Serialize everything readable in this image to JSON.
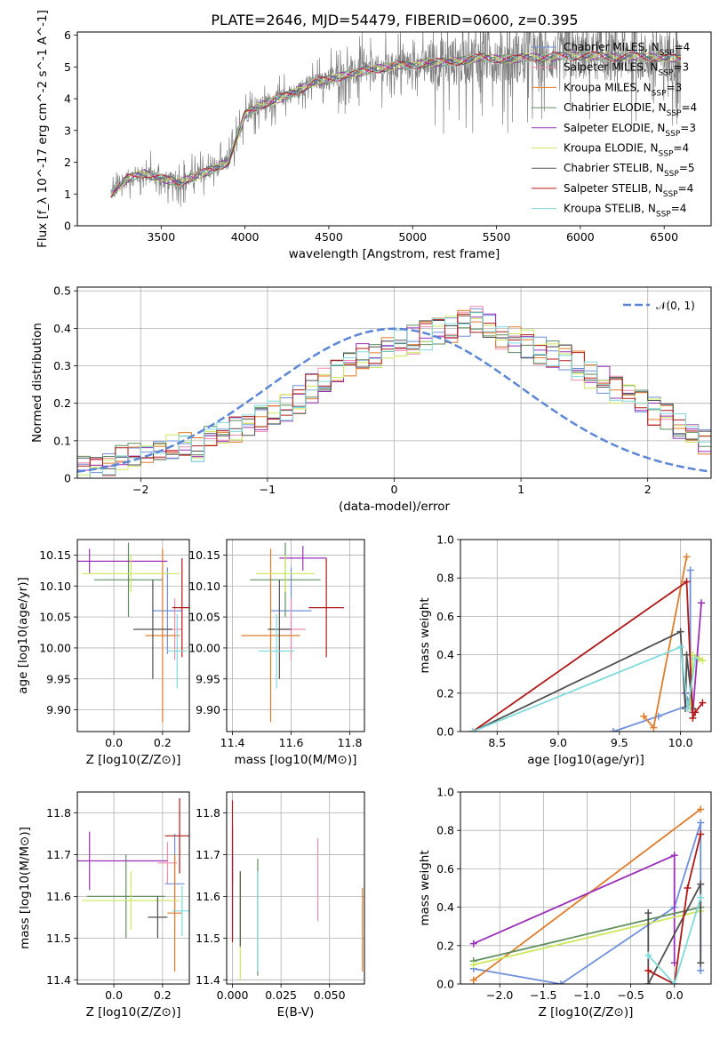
{
  "chart_data": [
    {
      "id": "spectrum",
      "type": "line",
      "title": "PLATE=2646, MJD=54479, FIBERID=0600, z=0.395",
      "xlabel": "wavelength [Angstrom, rest frame]",
      "ylabel": "Flux [f_λ 10^-17 erg cm^-2 s^-1 A^-1]",
      "xlim": [
        3000,
        6780
      ],
      "ylim": [
        0,
        6.1
      ],
      "xticks": [
        3500,
        4000,
        4500,
        5000,
        5500,
        6000,
        6500
      ],
      "yticks": [
        0,
        1,
        2,
        3,
        4,
        5,
        6
      ],
      "grid": false,
      "legend_position": "top-right",
      "legend": [
        {
          "prefix": "Chabrier MILES, N",
          "sub": "SSP",
          "suffix": "=4",
          "color": "#6d8fdc"
        },
        {
          "prefix": "Salpeter MILES, N",
          "sub": "SSP",
          "suffix": "=3",
          "color": "#f08cb0"
        },
        {
          "prefix": "Kroupa MILES, N",
          "sub": "SSP",
          "suffix": "=3",
          "color": "#e07b2a"
        },
        {
          "prefix": "Chabrier ELODIE, N",
          "sub": "SSP",
          "suffix": "=4",
          "color": "#5f8f5f"
        },
        {
          "prefix": "Salpeter ELODIE, N",
          "sub": "SSP",
          "suffix": "=3",
          "color": "#9b30b8"
        },
        {
          "prefix": "Kroupa ELODIE, N",
          "sub": "SSP",
          "suffix": "=4",
          "color": "#cce85a"
        },
        {
          "prefix": "Chabrier STELIB, N",
          "sub": "SSP",
          "suffix": "=5",
          "color": "#505050"
        },
        {
          "prefix": "Salpeter STELIB, N",
          "sub": "SSP",
          "suffix": "=4",
          "color": "#b01a1a"
        },
        {
          "prefix": "Kroupa STELIB, N",
          "sub": "SSP",
          "suffix": "=4",
          "color": "#7fdada"
        }
      ],
      "data_color": "#808080",
      "model_wavelength": [
        3200,
        3300,
        3400,
        3500,
        3600,
        3700,
        3800,
        3900,
        4000,
        4100,
        4200,
        4300,
        4400,
        4500,
        4600,
        4700,
        4800,
        4900,
        5000,
        5100,
        5200,
        5300,
        5400,
        5500,
        5600,
        5700,
        5800,
        5900,
        6000,
        6100,
        6200,
        6300,
        6400,
        6500,
        6600
      ],
      "model_flux": [
        1.0,
        1.5,
        1.65,
        1.5,
        1.35,
        1.55,
        1.75,
        2.0,
        3.5,
        3.8,
        4.0,
        4.2,
        4.5,
        4.6,
        4.75,
        4.85,
        4.95,
        5.05,
        5.05,
        5.15,
        5.15,
        5.2,
        5.3,
        5.25,
        5.25,
        5.3,
        5.3,
        5.35,
        5.35,
        5.35,
        5.3,
        5.35,
        5.3,
        5.3,
        5.25
      ]
    },
    {
      "id": "residuals",
      "type": "histogram",
      "xlabel": "(data-model)/error",
      "ylabel": "Normed distribution",
      "xlim": [
        -2.5,
        2.5
      ],
      "ylim": [
        0,
        0.51
      ],
      "xticks": [
        -2,
        -1,
        0,
        1,
        2
      ],
      "yticks": [
        0.0,
        0.1,
        0.2,
        0.3,
        0.4,
        0.5
      ],
      "grid": true,
      "legend_position": "top-right",
      "legend": "𝒩(0, 1)",
      "bin_width": 0.1,
      "bin_start": -2.5,
      "series": [
        {
          "name": "Chabrier MILES",
          "color": "#6d8fdc",
          "values": [
            0.02,
            0.03,
            0.04,
            0.05,
            0.06,
            0.06,
            0.07,
            0.08,
            0.09,
            0.08,
            0.11,
            0.12,
            0.13,
            0.15,
            0.16,
            0.18,
            0.19,
            0.21,
            0.24,
            0.27,
            0.29,
            0.31,
            0.32,
            0.33,
            0.35,
            0.36,
            0.37,
            0.38,
            0.39,
            0.4,
            0.41,
            0.42,
            0.4,
            0.38,
            0.37,
            0.36,
            0.34,
            0.33,
            0.32,
            0.3,
            0.28,
            0.26,
            0.24,
            0.22,
            0.2,
            0.18,
            0.16,
            0.14,
            0.12,
            0.1
          ]
        }
      ]
    },
    {
      "id": "age_vs_Z",
      "type": "errorbar",
      "xlabel": "Z [log10(Z/Z⊙)]",
      "ylabel": "age [log10(age/yr)]",
      "xlim": [
        -0.15,
        0.31
      ],
      "ylim": [
        9.865,
        10.175
      ],
      "xticks": [
        "0.0",
        "0.2"
      ],
      "yticks": [
        "9.90",
        "9.95",
        "10.00",
        "10.05",
        "10.10",
        "10.15"
      ],
      "grid": true,
      "points": [
        {
          "name": "Chabrier MILES",
          "color": "#6d8fdc",
          "x": 0.22,
          "y": 10.06,
          "xerr": 0.06,
          "yerr": 0.07
        },
        {
          "name": "Salpeter MILES",
          "color": "#f08cb0",
          "x": 0.25,
          "y": 10.03,
          "xerr": 0.03,
          "yerr": 0.05
        },
        {
          "name": "Kroupa MILES",
          "color": "#e07b2a",
          "x": 0.2,
          "y": 10.02,
          "xerr": 0.07,
          "yerr": 0.14
        },
        {
          "name": "Chabrier ELODIE",
          "color": "#5f8f5f",
          "x": 0.06,
          "y": 10.11,
          "xerr": 0.14,
          "yerr": 0.06
        },
        {
          "name": "Salpeter ELODIE",
          "color": "#9b30b8",
          "x": -0.1,
          "y": 10.14,
          "xerr": 0.32,
          "yerr": 0.02
        },
        {
          "name": "Kroupa ELODIE",
          "color": "#cce85a",
          "x": 0.07,
          "y": 10.12,
          "xerr": 0.2,
          "yerr": 0.03
        },
        {
          "name": "Chabrier STELIB",
          "color": "#505050",
          "x": 0.16,
          "y": 10.03,
          "xerr": 0.08,
          "yerr": 0.08
        },
        {
          "name": "Salpeter STELIB",
          "color": "#b01a1a",
          "x": 0.28,
          "y": 10.065,
          "xerr": 0.04,
          "yerr": 0.08
        },
        {
          "name": "Kroupa STELIB",
          "color": "#7fdada",
          "x": 0.26,
          "y": 9.995,
          "xerr": 0.04,
          "yerr": 0.06
        }
      ]
    },
    {
      "id": "age_vs_mass",
      "type": "errorbar",
      "xlabel": "mass [log10(M/M⊙)]",
      "ylabel": "",
      "xlim": [
        11.38,
        11.85
      ],
      "ylim": [
        9.865,
        10.175
      ],
      "xticks": [
        "11.4",
        "11.6",
        "11.8"
      ],
      "yticks": [
        "9.90",
        "9.95",
        "10.00",
        "10.05",
        "10.10",
        "10.15"
      ],
      "grid": true,
      "points": [
        {
          "name": "Chabrier MILES",
          "color": "#6d8fdc",
          "x": 11.6,
          "y": 10.06,
          "xerr": 0.07,
          "yerr": 0.07
        },
        {
          "name": "Salpeter MILES",
          "color": "#f08cb0",
          "x": 11.6,
          "y": 10.03,
          "xerr": 0.05,
          "yerr": 0.05
        },
        {
          "name": "Kroupa MILES",
          "color": "#e07b2a",
          "x": 11.53,
          "y": 10.02,
          "xerr": 0.1,
          "yerr": 0.14
        },
        {
          "name": "Chabrier ELODIE",
          "color": "#5f8f5f",
          "x": 11.58,
          "y": 10.11,
          "xerr": 0.12,
          "yerr": 0.06
        },
        {
          "name": "Salpeter ELODIE",
          "color": "#9b30b8",
          "x": 11.64,
          "y": 10.145,
          "xerr": 0.08,
          "yerr": 0.02
        },
        {
          "name": "Kroupa ELODIE",
          "color": "#cce85a",
          "x": 11.58,
          "y": 10.12,
          "xerr": 0.1,
          "yerr": 0.03
        },
        {
          "name": "Chabrier STELIB",
          "color": "#505050",
          "x": 11.56,
          "y": 10.03,
          "xerr": 0.04,
          "yerr": 0.08
        },
        {
          "name": "Salpeter STELIB",
          "color": "#b01a1a",
          "x": 11.72,
          "y": 10.065,
          "xerr": 0.06,
          "yerr": 0.08
        },
        {
          "name": "Kroupa STELIB",
          "color": "#7fdada",
          "x": 11.55,
          "y": 9.995,
          "xerr": 0.06,
          "yerr": 0.06
        }
      ]
    },
    {
      "id": "massweight_vs_age",
      "type": "line",
      "xlabel": "age [log10(age/yr)]",
      "ylabel": "mass weight",
      "xlim": [
        8.2,
        10.25
      ],
      "ylim": [
        0,
        1.0
      ],
      "xticks": [
        "8.5",
        "9.0",
        "9.5",
        "10.0"
      ],
      "yticks": [
        "0.0",
        "0.2",
        "0.4",
        "0.6",
        "0.8",
        "1.0"
      ],
      "grid": true,
      "series": [
        {
          "name": "Chabrier MILES",
          "color": "#6d8fdc",
          "x": [
            9.45,
            9.82,
            10.08,
            10.08
          ],
          "y": [
            0.0,
            0.08,
            0.14,
            0.84
          ]
        },
        {
          "name": "Kroupa MILES",
          "color": "#e07b2a",
          "x": [
            9.7,
            9.78,
            10.05
          ],
          "y": [
            0.08,
            0.02,
            0.91
          ]
        },
        {
          "name": "Salpeter ELODIE",
          "color": "#9b30b8",
          "x": [
            10.04,
            10.1,
            10.17
          ],
          "y": [
            0.2,
            0.1,
            0.67
          ]
        },
        {
          "name": "Kroupa ELODIE",
          "color": "#cce85a",
          "x": [
            10.08,
            10.1,
            10.15,
            10.18
          ],
          "y": [
            0.12,
            0.4,
            0.38,
            0.37
          ]
        },
        {
          "name": "Chabrier STELIB",
          "color": "#505050",
          "x": [
            8.3,
            10.0,
            10.04,
            10.05,
            10.1
          ],
          "y": [
            0.0,
            0.52,
            0.12,
            0.4,
            0.12
          ]
        },
        {
          "name": "Salpeter STELIB",
          "color": "#b01a1a",
          "x": [
            8.3,
            10.05,
            10.1,
            10.12,
            10.18
          ],
          "y": [
            0.0,
            0.78,
            0.07,
            0.1,
            0.15
          ]
        },
        {
          "name": "Kroupa STELIB",
          "color": "#7fdada",
          "x": [
            8.3,
            10.0,
            10.06,
            10.12
          ],
          "y": [
            0.0,
            0.44,
            0.12,
            0.38
          ]
        }
      ]
    },
    {
      "id": "mass_vs_Z",
      "type": "errorbar",
      "xlabel": "Z [log10(Z/Z⊙)]",
      "ylabel": "mass [log10(M/M⊙)]",
      "xlim": [
        -0.15,
        0.31
      ],
      "ylim": [
        11.39,
        11.85
      ],
      "xticks": [
        "0.0",
        "0.2"
      ],
      "yticks": [
        "11.4",
        "11.5",
        "11.6",
        "11.7",
        "11.8"
      ],
      "grid": true,
      "points": [
        {
          "name": "Chabrier MILES",
          "color": "#6d8fdc",
          "x": 0.25,
          "y": 11.63,
          "xerr": 0.04,
          "yerr": 0.12
        },
        {
          "name": "Salpeter MILES",
          "color": "#f08cb0",
          "x": 0.22,
          "y": 11.68,
          "xerr": 0.04,
          "yerr": 0.05
        },
        {
          "name": "Kroupa MILES",
          "color": "#e07b2a",
          "x": 0.25,
          "y": 11.56,
          "xerr": 0.03,
          "yerr": 0.14
        },
        {
          "name": "Chabrier ELODIE",
          "color": "#5f8f5f",
          "x": 0.05,
          "y": 11.6,
          "xerr": 0.16,
          "yerr": 0.1
        },
        {
          "name": "Salpeter ELODIE",
          "color": "#9b30b8",
          "x": -0.1,
          "y": 11.685,
          "xerr": 0.32,
          "yerr": 0.07
        },
        {
          "name": "Kroupa ELODIE",
          "color": "#cce85a",
          "x": 0.07,
          "y": 11.59,
          "xerr": 0.2,
          "yerr": 0.07
        },
        {
          "name": "Chabrier STELIB",
          "color": "#505050",
          "x": 0.18,
          "y": 11.55,
          "xerr": 0.04,
          "yerr": 0.05
        },
        {
          "name": "Salpeter STELIB",
          "color": "#b01a1a",
          "x": 0.27,
          "y": 11.745,
          "xerr": 0.06,
          "yerr": 0.09
        },
        {
          "name": "Kroupa STELIB",
          "color": "#7fdada",
          "x": 0.28,
          "y": 11.565,
          "xerr": 0.04,
          "yerr": 0.06
        }
      ]
    },
    {
      "id": "mass_vs_ebv",
      "type": "errorbar",
      "xlabel": "E(B-V)",
      "ylabel": "",
      "xlim": [
        -0.003,
        0.068
      ],
      "ylim": [
        11.39,
        11.85
      ],
      "xticks": [
        "0.000",
        "0.025",
        "0.050"
      ],
      "yticks": [
        "11.4",
        "11.5",
        "11.6",
        "11.7",
        "11.8"
      ],
      "grid": true,
      "points": [
        {
          "name": "Chabrier MILES",
          "color": "#6d8fdc",
          "x": 0.0,
          "y": 11.6,
          "xerr": 0,
          "yerr": 0.1
        },
        {
          "name": "Salpeter MILES",
          "color": "#f08cb0",
          "x": 0.044,
          "y": 11.64,
          "xerr": 0,
          "yerr": 0.1
        },
        {
          "name": "Kroupa MILES",
          "color": "#e07b2a",
          "x": 0.067,
          "y": 11.52,
          "xerr": 0,
          "yerr": 0.1
        },
        {
          "name": "Chabrier ELODIE",
          "color": "#5f8f5f",
          "x": 0.013,
          "y": 11.55,
          "xerr": 0,
          "yerr": 0.14
        },
        {
          "name": "Salpeter ELODIE",
          "color": "#9b30b8",
          "x": 0.0,
          "y": 11.7,
          "xerr": 0,
          "yerr": 0.07
        },
        {
          "name": "Kroupa ELODIE",
          "color": "#cce85a",
          "x": 0.004,
          "y": 11.53,
          "xerr": 0,
          "yerr": 0.13
        },
        {
          "name": "Chabrier STELIB",
          "color": "#505050",
          "x": 0.004,
          "y": 11.57,
          "xerr": 0,
          "yerr": 0.09
        },
        {
          "name": "Salpeter STELIB",
          "color": "#b01a1a",
          "x": 0.0,
          "y": 11.66,
          "xerr": 0,
          "yerr": 0.17
        },
        {
          "name": "Kroupa STELIB",
          "color": "#7fdada",
          "x": 0.013,
          "y": 11.54,
          "xerr": 0,
          "yerr": 0.12
        }
      ]
    },
    {
      "id": "massweight_vs_Z",
      "type": "line",
      "xlabel": "Z [log10(Z/Z⊙)]",
      "ylabel": "mass weight",
      "xlim": [
        -2.45,
        0.42
      ],
      "ylim": [
        0,
        1.0
      ],
      "xticks": [
        "−2.0",
        "−1.5",
        "−1.0",
        "−0.5",
        "0.0"
      ],
      "yticks": [
        "0.0",
        "0.2",
        "0.4",
        "0.6",
        "0.8",
        "1.0"
      ],
      "grid": true,
      "series": [
        {
          "name": "Chabrier MILES",
          "color": "#6d8fdc",
          "x": [
            -2.3,
            -1.3,
            0.0,
            0.3,
            0.3
          ],
          "y": [
            0.08,
            0.0,
            0.4,
            0.84,
            0.07
          ]
        },
        {
          "name": "Kroupa MILES",
          "color": "#e07b2a",
          "x": [
            -2.3,
            0.3
          ],
          "y": [
            0.02,
            0.91
          ]
        },
        {
          "name": "Salpeter ELODIE",
          "color": "#9b30b8",
          "x": [
            -2.3,
            0.0,
            0.0
          ],
          "y": [
            0.21,
            0.67,
            0.11
          ]
        },
        {
          "name": "Chabrier ELODIE",
          "color": "#5f8f5f",
          "x": [
            -2.3,
            0.3
          ],
          "y": [
            0.12,
            0.4
          ]
        },
        {
          "name": "Kroupa ELODIE",
          "color": "#cce85a",
          "x": [
            -2.3,
            0.3
          ],
          "y": [
            0.1,
            0.38
          ]
        },
        {
          "name": "Chabrier STELIB",
          "color": "#505050",
          "x": [
            -0.3,
            -0.3,
            0.3,
            0.3
          ],
          "y": [
            0.37,
            0.0,
            0.52,
            0.11
          ]
        },
        {
          "name": "Salpeter STELIB",
          "color": "#b01a1a",
          "x": [
            -0.3,
            0.0,
            0.15,
            0.3
          ],
          "y": [
            0.07,
            0.0,
            0.5,
            0.78
          ]
        },
        {
          "name": "Kroupa STELIB",
          "color": "#7fdada",
          "x": [
            -0.3,
            0.0,
            0.3
          ],
          "y": [
            0.15,
            0.0,
            0.45
          ]
        }
      ]
    }
  ]
}
